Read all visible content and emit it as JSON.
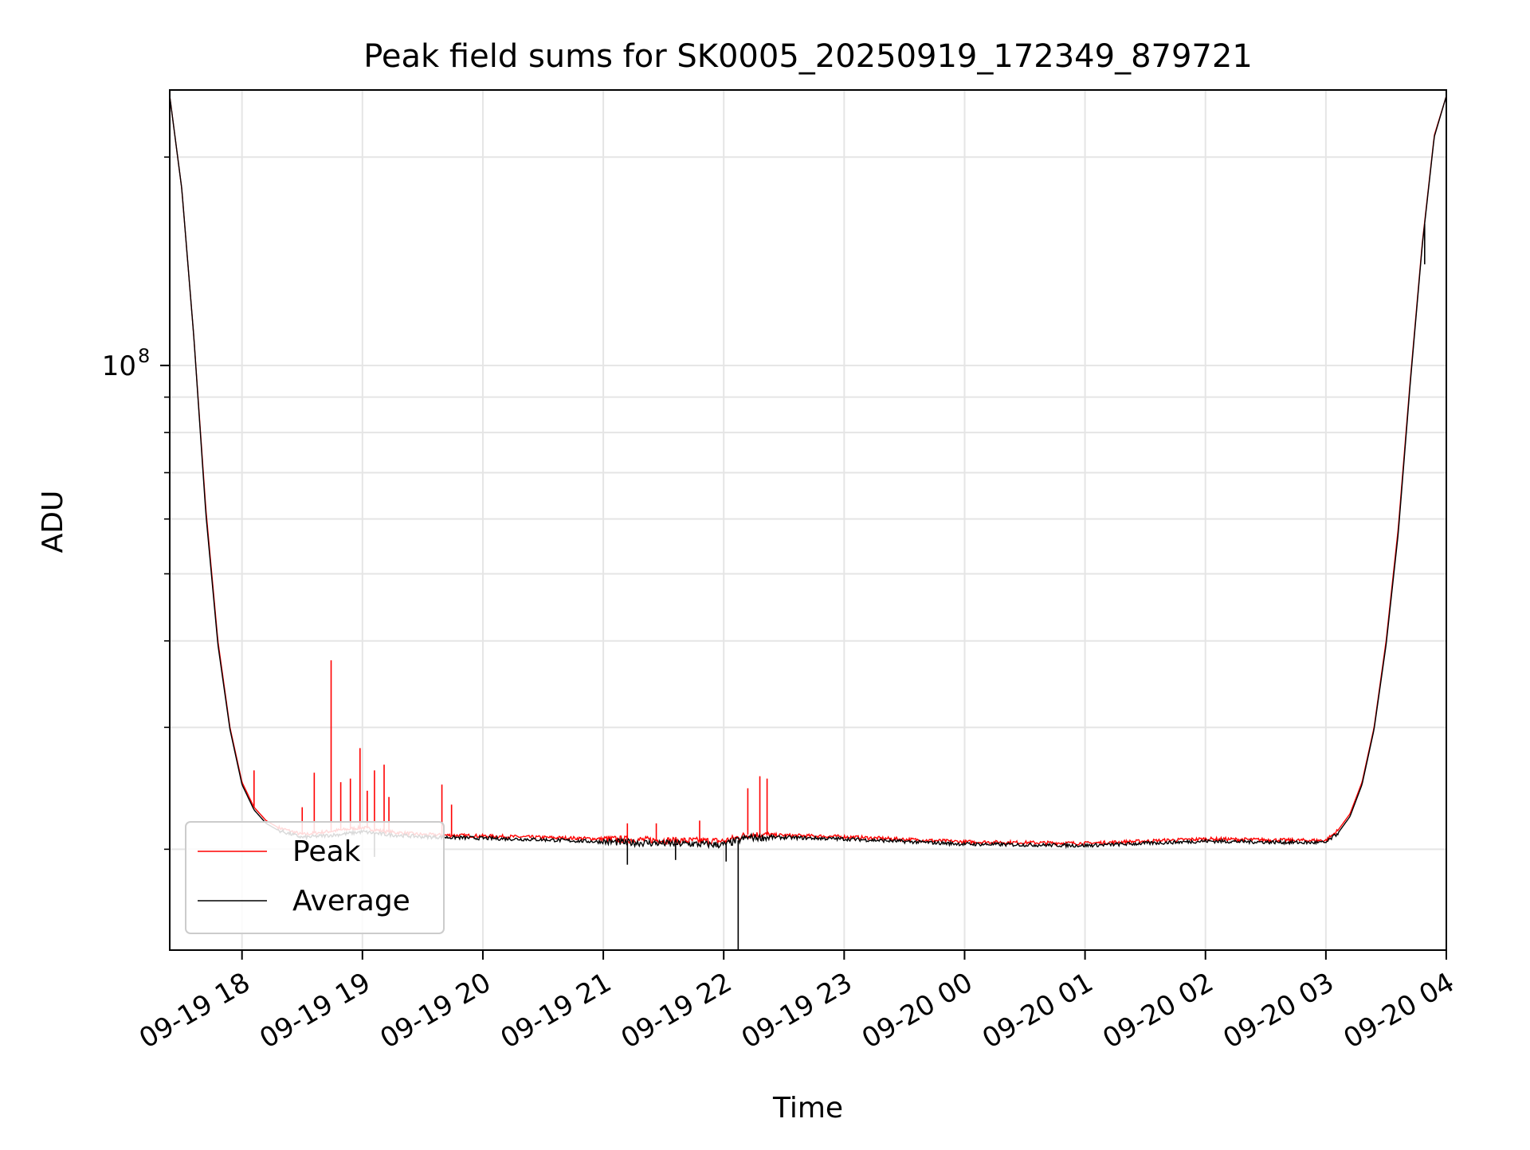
{
  "chart_data": {
    "type": "line",
    "title": "Peak field sums for SK0005_20250919_172349_879721",
    "xlabel": "Time",
    "ylabel": "ADU",
    "yscale": "log",
    "grid": true,
    "legend_position": "lower-left",
    "x_unit": "hours since 09-19 18:00",
    "xlim": [
      -0.6,
      10.0
    ],
    "ylim": [
      14300000,
      250000000
    ],
    "x_ticks": [
      {
        "value": 0,
        "label": "09-19 18"
      },
      {
        "value": 1,
        "label": "09-19 19"
      },
      {
        "value": 2,
        "label": "09-19 20"
      },
      {
        "value": 3,
        "label": "09-19 21"
      },
      {
        "value": 4,
        "label": "09-19 22"
      },
      {
        "value": 5,
        "label": "09-19 23"
      },
      {
        "value": 6,
        "label": "09-20 00"
      },
      {
        "value": 7,
        "label": "09-20 01"
      },
      {
        "value": 8,
        "label": "09-20 02"
      },
      {
        "value": 9,
        "label": "09-20 03"
      },
      {
        "value": 10,
        "label": "09-20 04"
      }
    ],
    "y_major_tick": {
      "value": 100000000,
      "base": "10",
      "exp": "8"
    },
    "y_minor_ticks": [
      20000000,
      30000000,
      40000000,
      50000000,
      60000000,
      70000000,
      80000000,
      90000000,
      200000000
    ],
    "legend": [
      "Peak",
      "Average"
    ],
    "series": [
      {
        "name": "Peak",
        "color": "#ff0000",
        "x": [
          -0.6,
          -0.5,
          -0.4,
          -0.3,
          -0.2,
          -0.1,
          0,
          0.1,
          0.2,
          0.3,
          0.5,
          0.8,
          1.0,
          1.2,
          1.5,
          2.0,
          2.5,
          3.0,
          3.5,
          4.0,
          4.2,
          4.5,
          5.0,
          6.0,
          7.0,
          8.0,
          8.8,
          9.0,
          9.1,
          9.2,
          9.3,
          9.4,
          9.5,
          9.6,
          9.7,
          9.8,
          9.9,
          10.0
        ],
        "y": [
          245000000,
          180000000,
          110000000,
          62000000,
          40000000,
          30000000,
          25000000,
          23000000,
          22000000,
          21500000,
          21000000,
          21300000,
          21500000,
          21200000,
          21000000,
          20900000,
          20800000,
          20700000,
          20600000,
          20550000,
          21000000,
          20950000,
          20850000,
          20500000,
          20400000,
          20700000,
          20600000,
          20600000,
          21300000,
          22500000,
          25000000,
          30000000,
          40000000,
          58000000,
          95000000,
          150000000,
          215000000,
          245000000
        ],
        "spikes": [
          {
            "x": 0.1,
            "y": 26000000
          },
          {
            "x": 0.5,
            "y": 23000000
          },
          {
            "x": 0.6,
            "y": 25800000
          },
          {
            "x": 0.74,
            "y": 37500000
          },
          {
            "x": 0.82,
            "y": 25000000
          },
          {
            "x": 0.9,
            "y": 25300000
          },
          {
            "x": 0.98,
            "y": 28000000
          },
          {
            "x": 1.04,
            "y": 24300000
          },
          {
            "x": 1.1,
            "y": 26000000
          },
          {
            "x": 1.18,
            "y": 26500000
          },
          {
            "x": 1.22,
            "y": 23800000
          },
          {
            "x": 1.66,
            "y": 24800000
          },
          {
            "x": 1.74,
            "y": 23200000
          },
          {
            "x": 3.2,
            "y": 21800000
          },
          {
            "x": 3.44,
            "y": 21800000
          },
          {
            "x": 3.8,
            "y": 22000000
          },
          {
            "x": 4.2,
            "y": 24500000
          },
          {
            "x": 4.3,
            "y": 25500000
          },
          {
            "x": 4.36,
            "y": 25300000
          }
        ]
      },
      {
        "name": "Average",
        "color": "#000000",
        "x": [
          -0.6,
          -0.5,
          -0.4,
          -0.3,
          -0.2,
          -0.1,
          0,
          0.1,
          0.2,
          0.3,
          0.5,
          0.8,
          1.0,
          1.2,
          1.5,
          2.0,
          2.5,
          3.0,
          3.5,
          4.0,
          4.2,
          4.5,
          5.0,
          6.0,
          7.0,
          8.0,
          8.8,
          9.0,
          9.1,
          9.2,
          9.3,
          9.4,
          9.5,
          9.6,
          9.7,
          9.8,
          9.9,
          10.0
        ],
        "y": [
          245000000,
          180000000,
          110000000,
          61000000,
          39500000,
          29800000,
          24800000,
          22800000,
          21800000,
          21300000,
          20800000,
          21000000,
          21200000,
          21000000,
          20850000,
          20750000,
          20650000,
          20500000,
          20400000,
          20300000,
          20800000,
          20800000,
          20700000,
          20350000,
          20250000,
          20550000,
          20450000,
          20450000,
          21100000,
          22300000,
          24800000,
          29800000,
          39500000,
          57000000,
          94000000,
          149000000,
          214000000,
          245000000
        ],
        "dips": [
          {
            "x": 1.1,
            "y": 19500000
          },
          {
            "x": 3.2,
            "y": 19000000
          },
          {
            "x": 3.6,
            "y": 19300000
          },
          {
            "x": 4.02,
            "y": 19200000
          },
          {
            "x": 4.12,
            "y": 14300000
          },
          {
            "x": 9.82,
            "y": 140000000
          }
        ]
      }
    ]
  }
}
